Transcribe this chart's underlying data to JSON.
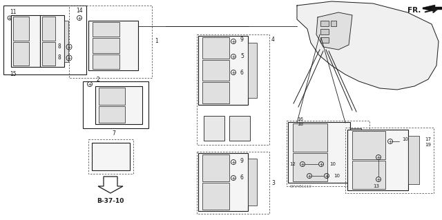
{
  "bg_color": "#ffffff",
  "lc": "#1a1a1a",
  "fig_w": 6.4,
  "fig_h": 3.19,
  "dpi": 100,
  "watermark": "S9VAB1110",
  "ref_label": "B-37-10",
  "fr_label": "FR."
}
